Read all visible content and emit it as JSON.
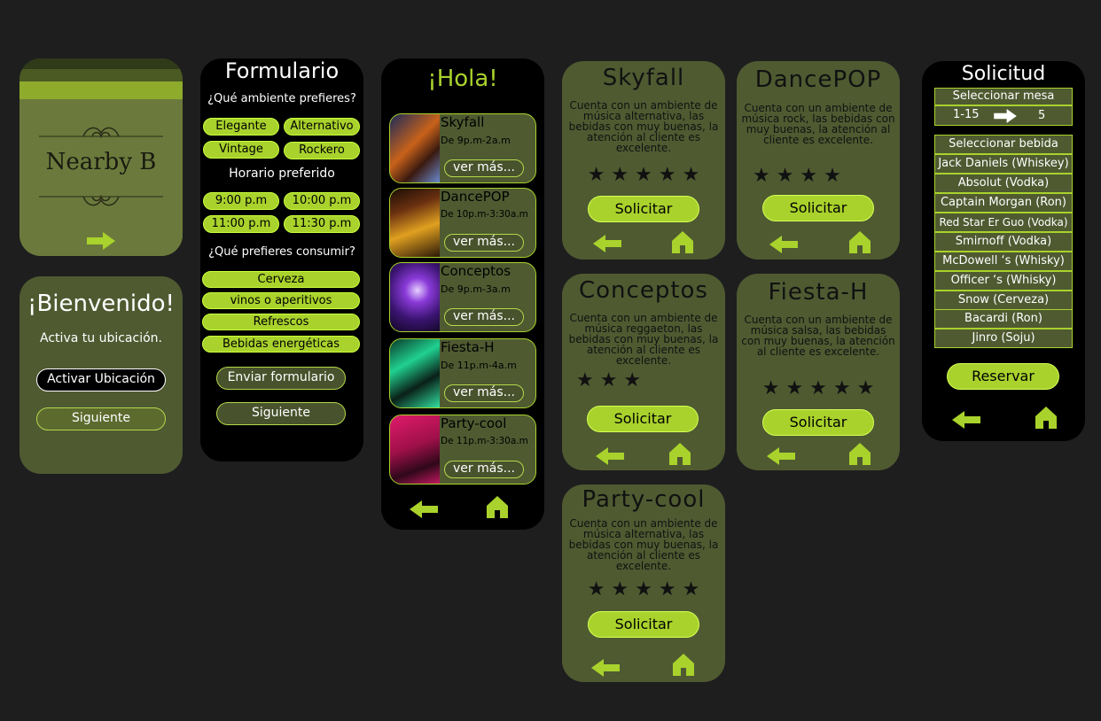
{
  "splash": {
    "title": "Nearby B"
  },
  "welcome": {
    "title": "¡Bienvenido!",
    "subtitle": "Activa tu ubicación.",
    "activate_label": "Activar Ubicación",
    "next_label": "Siguiente"
  },
  "form": {
    "title": "Formulario",
    "q1": "¿Qué ambiente prefieres?",
    "ambientes": [
      "Elegante",
      "Alternativo",
      "Vintage",
      "Rockero"
    ],
    "q2": "Horario preferido",
    "horarios": [
      "9:00 p.m",
      "10:00 p.m",
      "11:00 p.m",
      "11:30 p.m"
    ],
    "q3": "¿Qué prefieres consumir?",
    "consumos": [
      "Cerveza",
      "vinos o aperitivos",
      "Refrescos",
      "Bebidas energéticas"
    ],
    "submit_label": "Enviar formulario",
    "next_label": "Siguiente"
  },
  "list": {
    "title": "¡Hola!",
    "more_label": "ver más...",
    "items": [
      {
        "name": "Skyfall",
        "time": "De 9p.m-2a.m"
      },
      {
        "name": "DancePOP",
        "time": "De 10p.m-3:30a.m"
      },
      {
        "name": "Conceptos",
        "time": "De 9p.m-3a.m"
      },
      {
        "name": "Fiesta-H",
        "time": "De 11p.m-4a.m"
      },
      {
        "name": "Party-cool",
        "time": "De 11p.m-3:30a.m"
      }
    ]
  },
  "details": {
    "request_label": "Solicitar",
    "skyfall": {
      "name": "Skyfall",
      "desc": "Cuenta con un ambiente de música alternativa, las bebidas con muy buenas, la atención al cliente es excelente.",
      "stars": "★ ★ ★ ★ ★",
      "rating": 5
    },
    "dancepop": {
      "name": "DancePOP",
      "desc": "Cuenta con un ambiente de música rock, las bebidas con muy buenas, la atención al cliente es excelente.",
      "stars": "★ ★ ★ ★",
      "rating": 4
    },
    "conceptos": {
      "name": "Conceptos",
      "desc": "Cuenta con un ambiente de música reggaeton, las bebidas con muy buenas, la atención al cliente es excelente.",
      "stars": "★ ★ ★",
      "rating": 3
    },
    "fiesta": {
      "name": "Fiesta-H",
      "desc": "Cuenta con un ambiente de música salsa, las bebidas con muy buenas, la atención al cliente es excelente.",
      "stars": "★ ★ ★ ★ ★",
      "rating": 5
    },
    "party": {
      "name": "Party-cool",
      "desc": "Cuenta con un ambiente de música alternativa, las bebidas con muy buenas, la atención al cliente es excelente.",
      "stars": "★ ★ ★ ★ ★",
      "rating": 5
    }
  },
  "solicitud": {
    "title": "Solicitud",
    "table_header": "Seleccionar mesa",
    "range": "1-15",
    "selected": "5",
    "drinks_header": "Seleccionar bebida",
    "drinks": [
      "Jack Daniels (Whiskey)",
      "Absolut (Vodka)",
      "Captain Morgan (Ron)",
      "Red Star Er Guo (Vodka)",
      "Smirnoff (Vodka)",
      "McDowell ‘s (Whisky)",
      "Officer ‘s (Whisky)",
      "Snow (Cerveza)",
      "Bacardi (Ron)",
      "Jinro (Soju)"
    ],
    "reserve_label": "Reservar"
  },
  "colors": {
    "accent": "#a9d22c",
    "olive": "#4f5a31",
    "background": "#1e1e1e"
  }
}
